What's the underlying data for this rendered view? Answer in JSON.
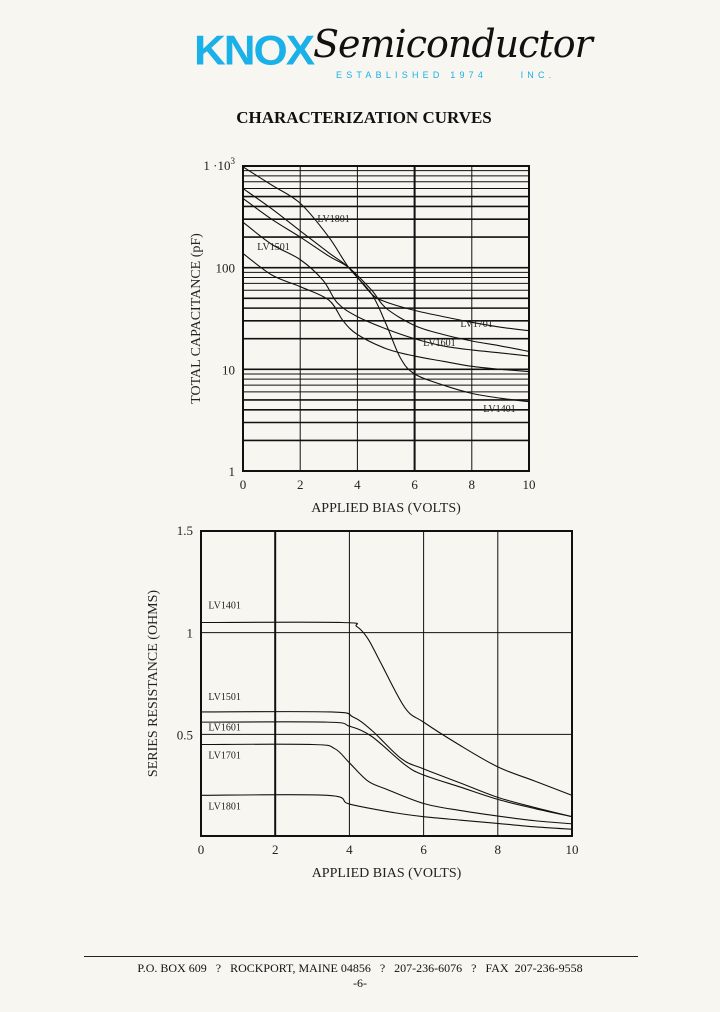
{
  "header": {
    "logo_brand": "KNOX",
    "logo_script": "Semiconductor",
    "logo_tagline": "ESTABLISHED 1974     INC.",
    "brand_color": "#1ab0e8",
    "title": "CHARACTERIZATION CURVES"
  },
  "footer": {
    "address": "P.O. BOX 609   ?   ROCKPORT, MAINE 04856   ?   207-236-6076   ?   FAX  207-236-9558",
    "page": "-6-"
  },
  "chart_data": [
    {
      "type": "line",
      "ylabel": "TOTAL CAPACITANCE (pF)",
      "xlabel": "APPLIED BIAS (VOLTS)",
      "xlim": [
        0,
        10
      ],
      "ylim": [
        1,
        1000
      ],
      "yscale": "log",
      "grid": true,
      "x_ticks": [
        "0",
        "2",
        "4",
        "6",
        "8",
        "10"
      ],
      "y_ticks": [
        {
          "value": 1,
          "label": "1"
        },
        {
          "value": 10,
          "label": "10"
        },
        {
          "value": 100,
          "label": "100"
        },
        {
          "value": 1000,
          "label": "1 ·10",
          "sup": "3"
        }
      ],
      "series": [
        {
          "name": "LV1401",
          "label_at": [
            8.4,
            3.8
          ],
          "points": [
            [
              0,
              980
            ],
            [
              1,
              650
            ],
            [
              2,
              430
            ],
            [
              3,
              200
            ],
            [
              3.7,
              100
            ],
            [
              4.5,
              55
            ],
            [
              5,
              28
            ],
            [
              5.5,
              13
            ],
            [
              6,
              9
            ],
            [
              7,
              7
            ],
            [
              8,
              5.8
            ],
            [
              9,
              5.2
            ],
            [
              10,
              4.8
            ]
          ]
        },
        {
          "name": "LV1501",
          "label_at": [
            0.5,
            150
          ],
          "points": [
            [
              0,
              138
            ],
            [
              1,
              85
            ],
            [
              2,
              65
            ],
            [
              3,
              48
            ],
            [
              3.5,
              30
            ],
            [
              4,
              22
            ],
            [
              5,
              16
            ],
            [
              6,
              13.5
            ],
            [
              7,
              12
            ],
            [
              8,
              10.7
            ],
            [
              9,
              10
            ],
            [
              10,
              9.5
            ]
          ]
        },
        {
          "name": "LV1601",
          "label_at": [
            6.3,
            17
          ],
          "points": [
            [
              0,
              280
            ],
            [
              1,
              170
            ],
            [
              2,
              120
            ],
            [
              2.8,
              75
            ],
            [
              3.3,
              45
            ],
            [
              4,
              33
            ],
            [
              5,
              25
            ],
            [
              6,
              20
            ],
            [
              7,
              17
            ],
            [
              8,
              15.5
            ],
            [
              9,
              14.5
            ],
            [
              10,
              13.5
            ]
          ]
        },
        {
          "name": "LV1701",
          "label_at": [
            7.6,
            26
          ],
          "points": [
            [
              0,
              600
            ],
            [
              1,
              380
            ],
            [
              2,
              230
            ],
            [
              3,
              140
            ],
            [
              3.7,
              100
            ],
            [
              4.5,
              55
            ],
            [
              5,
              46
            ],
            [
              6,
              38
            ],
            [
              7,
              33
            ],
            [
              8,
              29
            ],
            [
              9,
              26
            ],
            [
              10,
              24
            ]
          ]
        },
        {
          "name": "LV1801",
          "label_at": [
            2.6,
            280
          ],
          "points": [
            [
              0,
              480
            ],
            [
              1,
              300
            ],
            [
              2,
              200
            ],
            [
              3,
              130
            ],
            [
              3.7,
              100
            ],
            [
              4.5,
              60
            ],
            [
              5,
              40
            ],
            [
              6,
              27
            ],
            [
              7,
              22
            ],
            [
              8,
              19
            ],
            [
              9,
              17
            ],
            [
              10,
              15
            ]
          ]
        }
      ]
    },
    {
      "type": "line",
      "ylabel": "SERIES RESISTANCE (OHMS)",
      "xlabel": "APPLIED BIAS (VOLTS)",
      "xlim": [
        0,
        10
      ],
      "ylim": [
        0,
        1.5
      ],
      "grid": true,
      "x_ticks": [
        "0",
        "2",
        "4",
        "6",
        "8",
        "10"
      ],
      "y_ticks": [
        {
          "value": 0.5,
          "label": "0.5"
        },
        {
          "value": 1,
          "label": "1"
        },
        {
          "value": 1.5,
          "label": "1.5"
        }
      ],
      "series": [
        {
          "name": "LV1401",
          "label_at": [
            0.2,
            1.12
          ],
          "points": [
            [
              0,
              1.05
            ],
            [
              3.8,
              1.05
            ],
            [
              4.2,
              1.03
            ],
            [
              4.5,
              0.97
            ],
            [
              4.85,
              0.85
            ],
            [
              5.5,
              0.63
            ],
            [
              6,
              0.56
            ],
            [
              6.9,
              0.455
            ],
            [
              8,
              0.34
            ],
            [
              9,
              0.27
            ],
            [
              10,
              0.2
            ]
          ]
        },
        {
          "name": "LV1501",
          "label_at": [
            0.2,
            0.67
          ],
          "points": [
            [
              0,
              0.61
            ],
            [
              3.5,
              0.61
            ],
            [
              4.1,
              0.585
            ],
            [
              4.6,
              0.52
            ],
            [
              5.4,
              0.38
            ],
            [
              6,
              0.33
            ],
            [
              7,
              0.26
            ],
            [
              8,
              0.19
            ],
            [
              9,
              0.14
            ],
            [
              10,
              0.095
            ]
          ]
        },
        {
          "name": "LV1601",
          "label_at": [
            0.2,
            0.52
          ],
          "points": [
            [
              0,
              0.56
            ],
            [
              3.4,
              0.56
            ],
            [
              4,
              0.54
            ],
            [
              4.6,
              0.49
            ],
            [
              5.5,
              0.35
            ],
            [
              6,
              0.3
            ],
            [
              7,
              0.24
            ],
            [
              8,
              0.18
            ],
            [
              9,
              0.135
            ],
            [
              10,
              0.095
            ]
          ]
        },
        {
          "name": "LV1701",
          "label_at": [
            0.2,
            0.38
          ],
          "points": [
            [
              0,
              0.45
            ],
            [
              3,
              0.45
            ],
            [
              3.6,
              0.43
            ],
            [
              4,
              0.36
            ],
            [
              4.5,
              0.27
            ],
            [
              5,
              0.23
            ],
            [
              6,
              0.16
            ],
            [
              7,
              0.125
            ],
            [
              8,
              0.098
            ],
            [
              9,
              0.075
            ],
            [
              10,
              0.06
            ]
          ]
        },
        {
          "name": "LV1801",
          "label_at": [
            0.2,
            0.13
          ],
          "points": [
            [
              0,
              0.2
            ],
            [
              3.4,
              0.2
            ],
            [
              4,
              0.157
            ],
            [
              5.2,
              0.115
            ],
            [
              6,
              0.095
            ],
            [
              7,
              0.078
            ],
            [
              8,
              0.062
            ],
            [
              9,
              0.045
            ],
            [
              10,
              0.033
            ]
          ]
        }
      ]
    }
  ]
}
